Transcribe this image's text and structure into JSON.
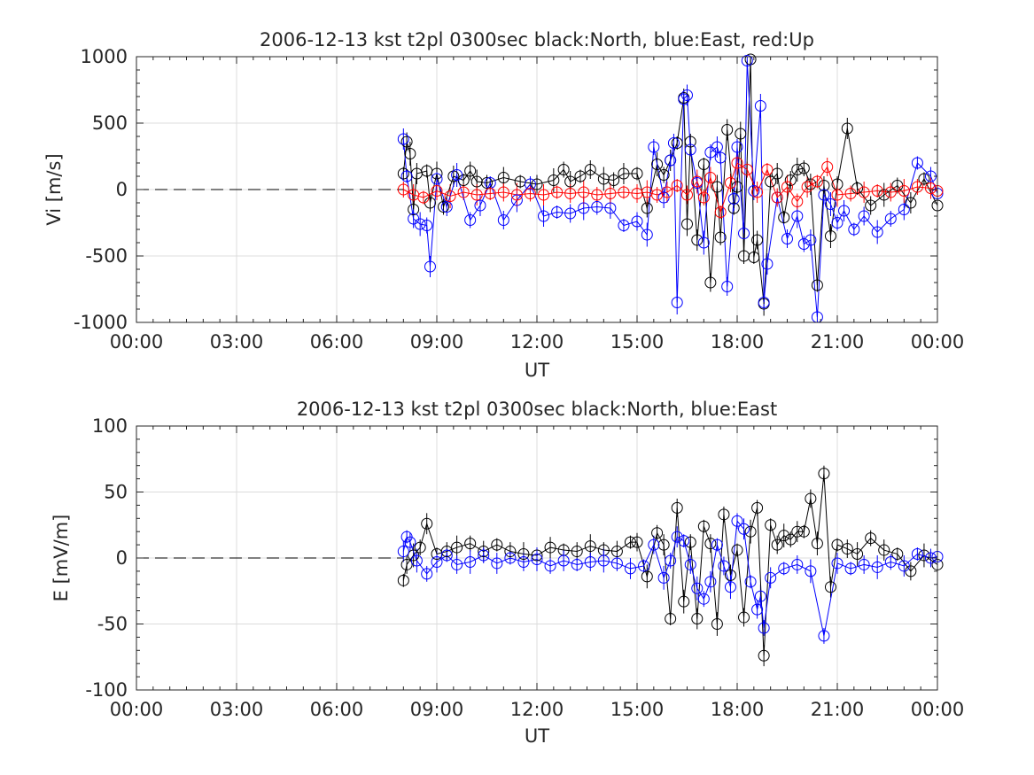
{
  "chart_data": [
    {
      "type": "scatter",
      "title": "2006-12-13 kst t2pl 0300sec black:North, blue:East, red:Up",
      "xlabel": "UT",
      "ylabel": "Vi [m/s]",
      "xlim": [
        0,
        24
      ],
      "ylim": [
        -1000,
        1000
      ],
      "xticks": [
        0,
        3,
        6,
        9,
        12,
        15,
        18,
        21,
        24
      ],
      "xtick_labels": [
        "00:00",
        "03:00",
        "06:00",
        "09:00",
        "12:00",
        "15:00",
        "18:00",
        "21:00",
        "00:00"
      ],
      "yticks": [
        -1000,
        -500,
        0,
        500,
        1000
      ],
      "ytick_labels": [
        "-1000",
        "-500",
        "0",
        "500",
        "1000"
      ],
      "grid": true,
      "reference_line": {
        "y": 0,
        "x_range": [
          0,
          8
        ],
        "style": "dashed"
      },
      "series": [
        {
          "name": "North",
          "color": "#000000",
          "x": [
            8.0,
            8.1,
            8.2,
            8.3,
            8.4,
            8.7,
            8.8,
            9.0,
            9.2,
            9.5,
            9.8,
            10.0,
            10.2,
            10.5,
            11.0,
            11.5,
            12.0,
            12.5,
            12.8,
            13.0,
            13.3,
            13.6,
            14.0,
            14.3,
            14.6,
            15.0,
            15.3,
            15.6,
            15.8,
            16.0,
            16.2,
            16.4,
            16.5,
            16.6,
            16.8,
            17.0,
            17.2,
            17.4,
            17.5,
            17.7,
            17.9,
            18.0,
            18.1,
            18.2,
            18.4,
            18.5,
            18.6,
            18.8,
            19.0,
            19.2,
            19.4,
            19.6,
            19.8,
            20.0,
            20.2,
            20.4,
            20.6,
            20.8,
            21.0,
            21.3,
            21.6,
            22.0,
            22.4,
            22.8,
            23.2,
            23.6,
            24.0
          ],
          "y": [
            120,
            360,
            270,
            -150,
            120,
            140,
            -100,
            120,
            -130,
            100,
            70,
            140,
            60,
            50,
            90,
            60,
            40,
            70,
            150,
            60,
            100,
            150,
            80,
            70,
            120,
            120,
            -140,
            190,
            110,
            220,
            350,
            690,
            -260,
            360,
            -380,
            190,
            -700,
            20,
            -360,
            450,
            -140,
            20,
            420,
            -500,
            980,
            -510,
            -380,
            -860,
            60,
            120,
            -210,
            70,
            150,
            160,
            40,
            -720,
            30,
            -350,
            40,
            460,
            10,
            -120,
            -40,
            30,
            -100,
            80,
            -120
          ]
        },
        {
          "name": "East",
          "color": "#0000ff",
          "x": [
            8.0,
            8.1,
            8.3,
            8.5,
            8.7,
            8.8,
            9.0,
            9.3,
            9.6,
            10.0,
            10.3,
            10.6,
            11.0,
            11.4,
            11.8,
            12.2,
            12.6,
            13.0,
            13.4,
            13.8,
            14.2,
            14.6,
            15.0,
            15.3,
            15.5,
            15.8,
            16.0,
            16.1,
            16.2,
            16.4,
            16.5,
            16.6,
            16.8,
            17.0,
            17.2,
            17.4,
            17.5,
            17.7,
            17.9,
            18.0,
            18.2,
            18.3,
            18.5,
            18.7,
            18.8,
            18.9,
            19.2,
            19.5,
            19.8,
            20.0,
            20.2,
            20.4,
            20.6,
            20.8,
            21.0,
            21.2,
            21.5,
            21.8,
            22.2,
            22.6,
            23.0,
            23.4,
            23.8,
            24.0
          ],
          "y": [
            380,
            100,
            -220,
            -260,
            -270,
            -580,
            80,
            -130,
            110,
            -230,
            -120,
            50,
            -230,
            -80,
            40,
            -200,
            -170,
            -180,
            -140,
            -130,
            -140,
            -270,
            -240,
            -340,
            320,
            -60,
            220,
            350,
            -850,
            680,
            710,
            300,
            50,
            -400,
            280,
            320,
            240,
            -730,
            -70,
            320,
            -330,
            970,
            -10,
            630,
            -850,
            -560,
            -60,
            -370,
            -200,
            -410,
            -380,
            -960,
            -40,
            -110,
            -250,
            -160,
            -300,
            -200,
            -320,
            -220,
            -150,
            200,
            100,
            -30
          ]
        },
        {
          "name": "Up",
          "color": "#ff0000",
          "x": [
            8.0,
            8.3,
            8.6,
            9.0,
            9.4,
            9.8,
            10.2,
            10.6,
            11.0,
            11.4,
            11.8,
            12.2,
            12.6,
            13.0,
            13.4,
            13.8,
            14.2,
            14.6,
            15.0,
            15.3,
            15.6,
            15.9,
            16.2,
            16.5,
            16.8,
            17.0,
            17.2,
            17.5,
            17.8,
            18.0,
            18.3,
            18.6,
            18.9,
            19.2,
            19.5,
            19.8,
            20.1,
            20.4,
            20.7,
            21.0,
            21.4,
            21.8,
            22.2,
            22.6,
            23.0,
            23.4,
            23.8,
            24.0
          ],
          "y": [
            0,
            -40,
            -60,
            -10,
            -50,
            -20,
            -40,
            -30,
            -20,
            -40,
            -30,
            -40,
            -20,
            -30,
            -20,
            -40,
            -30,
            -20,
            -30,
            -20,
            -40,
            -20,
            30,
            -40,
            60,
            -60,
            90,
            -170,
            50,
            200,
            150,
            -20,
            150,
            -60,
            20,
            -90,
            20,
            60,
            170,
            -40,
            -30,
            -20,
            -10,
            -20,
            -10,
            20,
            10,
            -10
          ]
        }
      ]
    },
    {
      "type": "scatter",
      "title": "2006-12-13 kst t2pl 0300sec black:North, blue:East",
      "xlabel": "UT",
      "ylabel": "E [mV/m]",
      "xlim": [
        0,
        24
      ],
      "ylim": [
        -100,
        100
      ],
      "xticks": [
        0,
        3,
        6,
        9,
        12,
        15,
        18,
        21,
        24
      ],
      "xtick_labels": [
        "00:00",
        "03:00",
        "06:00",
        "09:00",
        "12:00",
        "15:00",
        "18:00",
        "21:00",
        "00:00"
      ],
      "yticks": [
        -100,
        -50,
        0,
        50,
        100
      ],
      "ytick_labels": [
        "-100",
        "-50",
        "0",
        "50",
        "100"
      ],
      "grid": true,
      "reference_line": {
        "y": 0,
        "x_range": [
          0,
          8
        ],
        "style": "dashed"
      },
      "series": [
        {
          "name": "North",
          "color": "#000000",
          "x": [
            8.0,
            8.1,
            8.3,
            8.5,
            8.7,
            9.0,
            9.3,
            9.6,
            10.0,
            10.4,
            10.8,
            11.2,
            11.6,
            12.0,
            12.4,
            12.8,
            13.2,
            13.6,
            14.0,
            14.4,
            14.8,
            15.0,
            15.3,
            15.6,
            15.8,
            16.0,
            16.2,
            16.4,
            16.6,
            16.8,
            17.0,
            17.2,
            17.4,
            17.6,
            17.8,
            18.0,
            18.2,
            18.4,
            18.6,
            18.8,
            19.0,
            19.2,
            19.4,
            19.6,
            19.8,
            20.0,
            20.2,
            20.4,
            20.6,
            20.8,
            21.0,
            21.3,
            21.6,
            22.0,
            22.4,
            22.8,
            23.2,
            23.6,
            24.0
          ],
          "y": [
            -17,
            -5,
            2,
            8,
            26,
            3,
            5,
            8,
            11,
            5,
            10,
            5,
            3,
            2,
            8,
            6,
            5,
            9,
            6,
            5,
            12,
            12,
            -14,
            19,
            10,
            -46,
            38,
            -33,
            12,
            -46,
            24,
            11,
            -50,
            33,
            -13,
            6,
            -45,
            20,
            38,
            -74,
            25,
            10,
            17,
            14,
            20,
            20,
            45,
            11,
            64,
            -22,
            10,
            7,
            3,
            15,
            6,
            3,
            -10,
            2,
            -5
          ]
        },
        {
          "name": "East",
          "color": "#0000ff",
          "x": [
            8.0,
            8.1,
            8.2,
            8.4,
            8.7,
            9.0,
            9.3,
            9.6,
            10.0,
            10.4,
            10.8,
            11.2,
            11.6,
            12.0,
            12.4,
            12.8,
            13.2,
            13.6,
            14.0,
            14.4,
            14.8,
            15.2,
            15.5,
            15.8,
            16.0,
            16.2,
            16.4,
            16.6,
            16.8,
            17.0,
            17.2,
            17.4,
            17.6,
            17.8,
            18.0,
            18.2,
            18.4,
            18.6,
            18.7,
            18.8,
            19.0,
            19.4,
            19.8,
            20.2,
            20.6,
            21.0,
            21.4,
            21.8,
            22.2,
            22.6,
            23.0,
            23.4,
            23.8,
            24.0
          ],
          "y": [
            5,
            16,
            12,
            -2,
            -12,
            -3,
            2,
            -5,
            -3,
            2,
            -4,
            0,
            -3,
            -1,
            -6,
            -2,
            -5,
            -3,
            -2,
            -4,
            -8,
            -6,
            10,
            -15,
            -2,
            16,
            13,
            -5,
            -23,
            -31,
            -18,
            10,
            -6,
            -22,
            28,
            22,
            -18,
            -39,
            -29,
            -53,
            -15,
            -8,
            -5,
            -10,
            -59,
            -4,
            -8,
            -5,
            -7,
            -3,
            -6,
            3,
            0,
            1
          ]
        }
      ]
    }
  ]
}
